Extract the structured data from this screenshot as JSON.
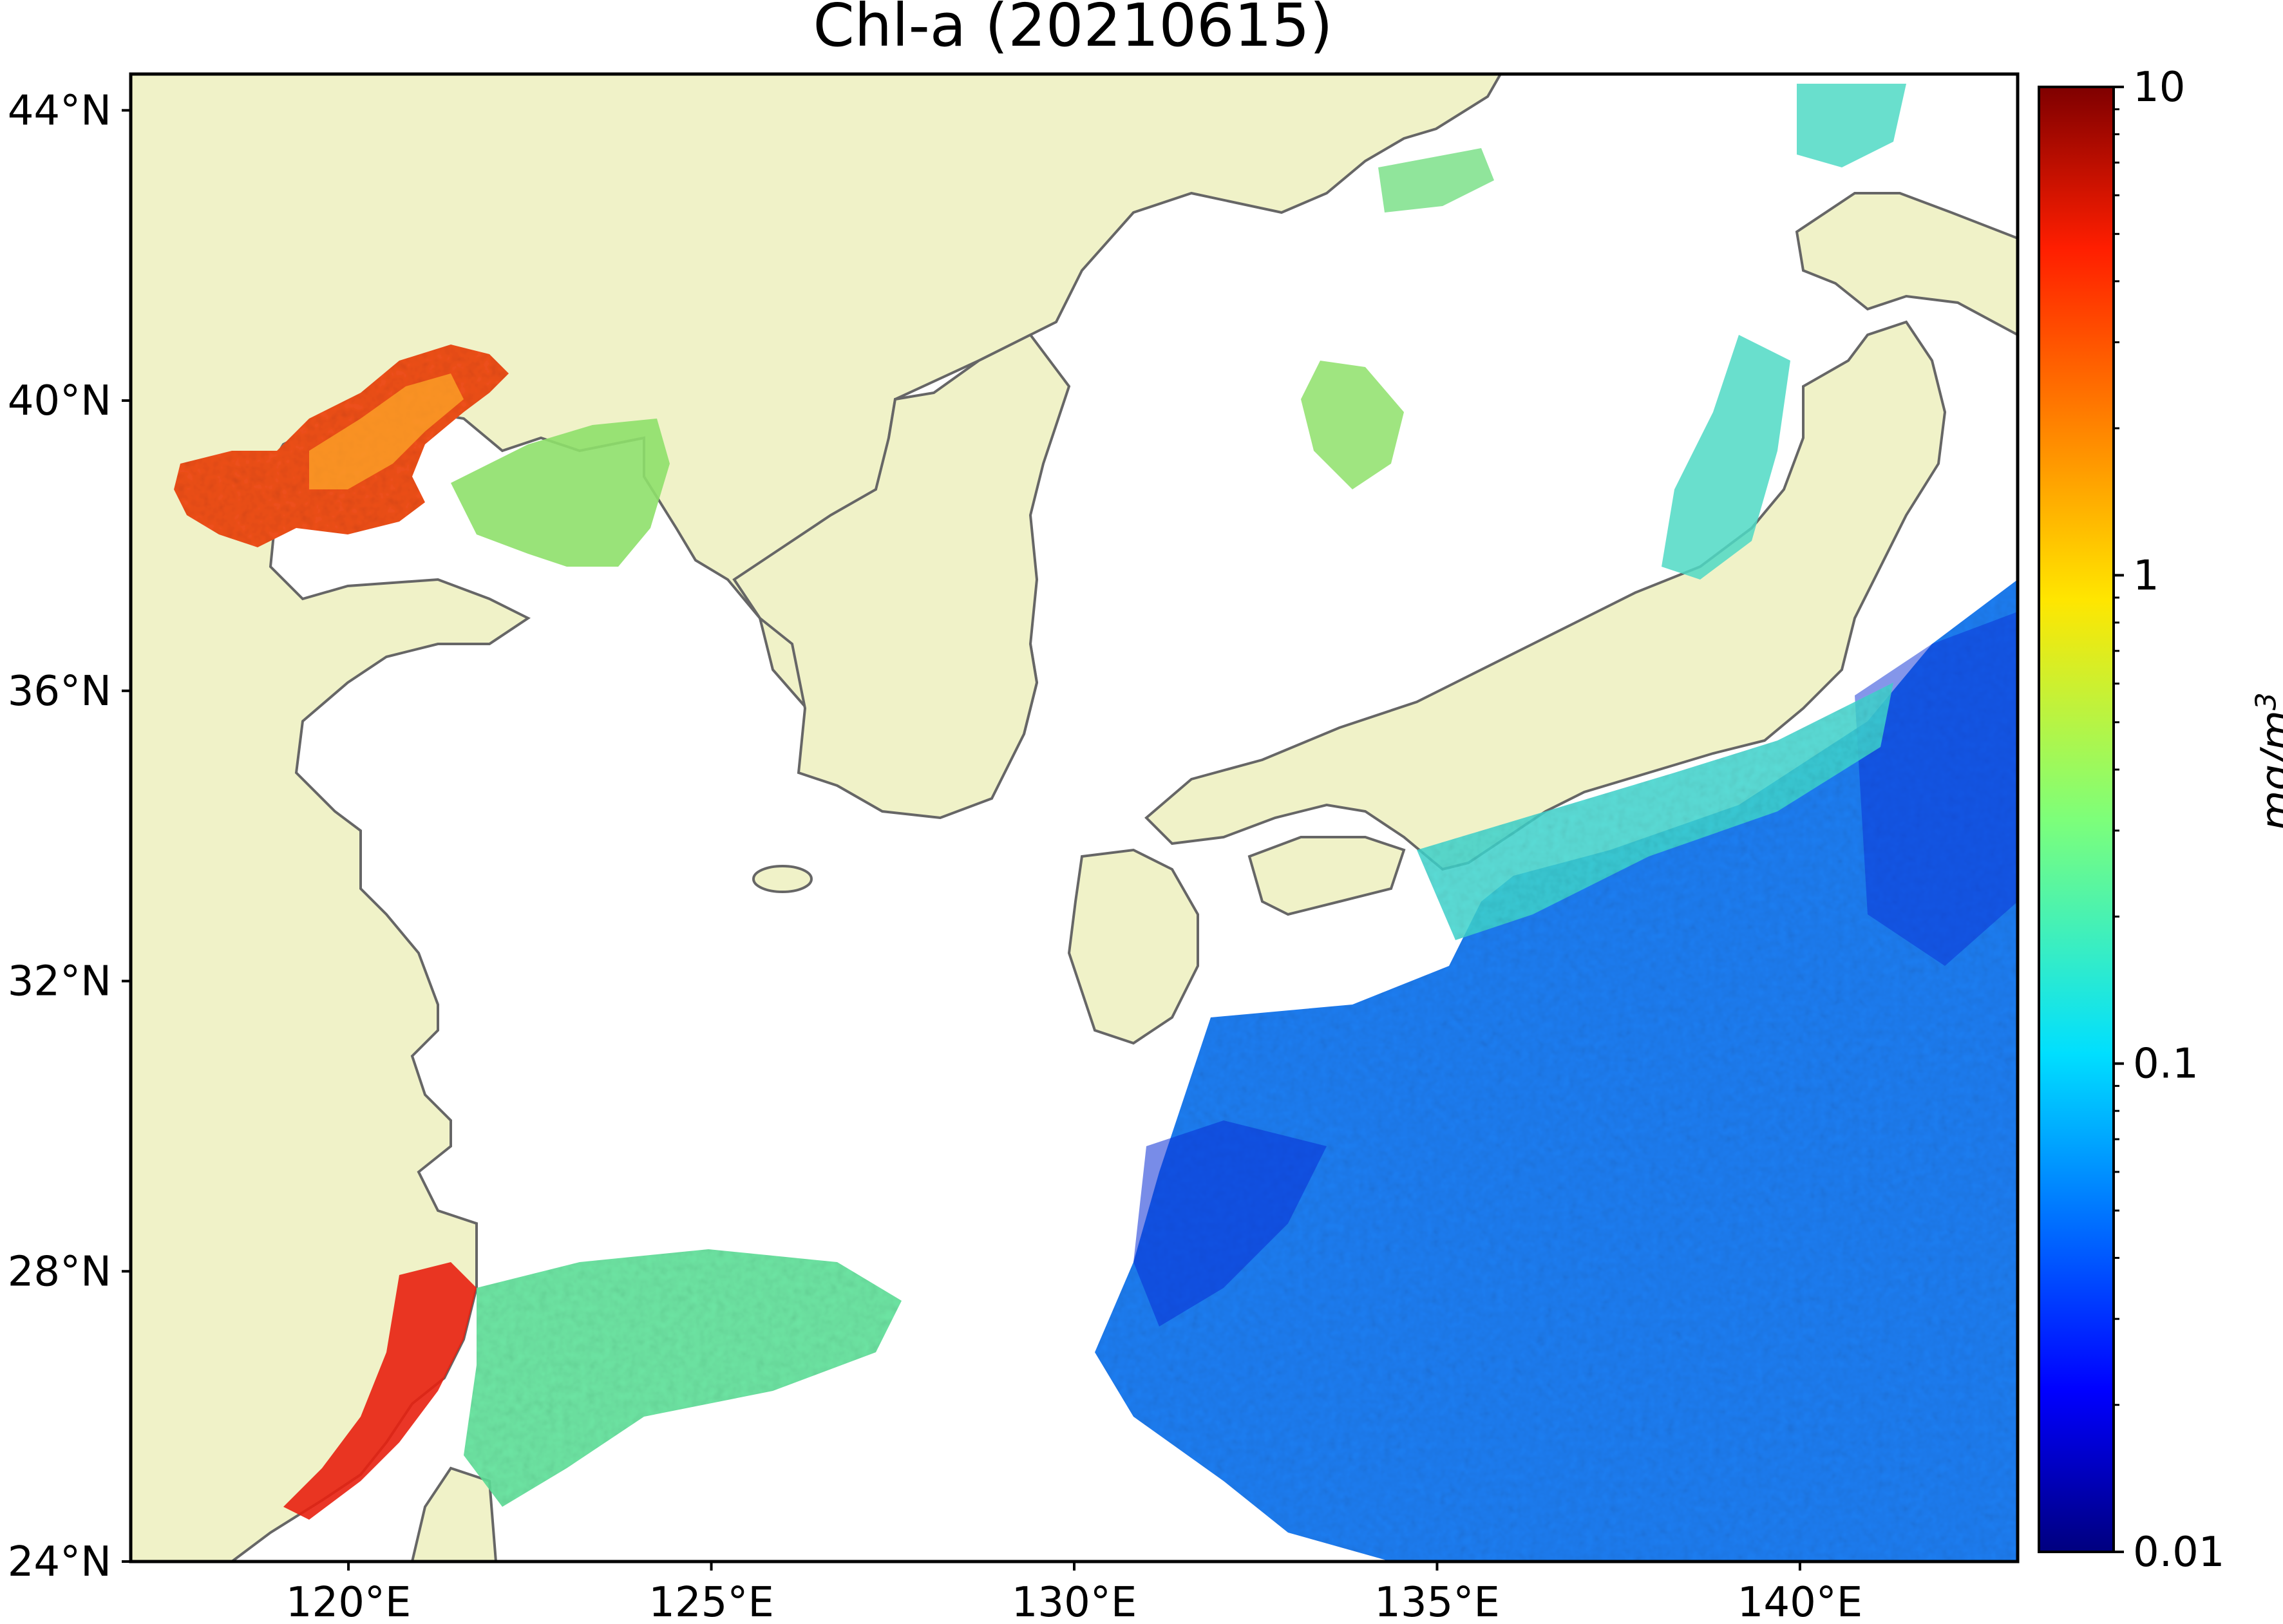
{
  "title": "Chl-a (20210615)",
  "map": {
    "type": "satellite chlorophyll-a concentration map",
    "region": "East Asia / Northwest Pacific",
    "projection": "plate carree",
    "lon_range": [
      117,
      143
    ],
    "lat_range": [
      24,
      44.5
    ],
    "land_color": "#f0f2c8",
    "coastline_color": "#666666",
    "no_data_color": "#ffffff",
    "lat_ticks": [
      {
        "value": 44,
        "label": "44°N"
      },
      {
        "value": 40,
        "label": "40°N"
      },
      {
        "value": 36,
        "label": "36°N"
      },
      {
        "value": 32,
        "label": "32°N"
      },
      {
        "value": 28,
        "label": "28°N"
      },
      {
        "value": 24,
        "label": "24°N"
      }
    ],
    "lon_ticks": [
      {
        "value": 120,
        "label": "120°E"
      },
      {
        "value": 125,
        "label": "125°E"
      },
      {
        "value": 130,
        "label": "130°E"
      },
      {
        "value": 135,
        "label": "135°E"
      },
      {
        "value": 140,
        "label": "140°E"
      }
    ]
  },
  "colorbar": {
    "scale": "log",
    "colormap": "jet",
    "range": [
      0.01,
      10
    ],
    "unit_label": "mg/m3",
    "ticks": [
      {
        "value": 10,
        "label": "10"
      },
      {
        "value": 1,
        "label": "1"
      },
      {
        "value": 0.1,
        "label": "0.1"
      },
      {
        "value": 0.01,
        "label": "0.01"
      }
    ]
  }
}
